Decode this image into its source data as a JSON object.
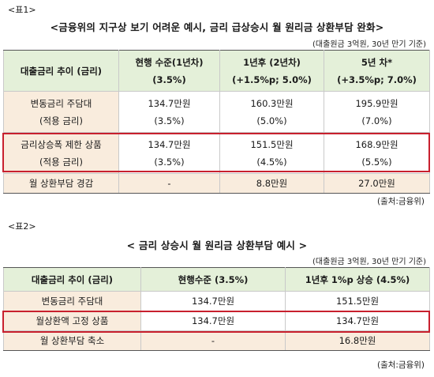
{
  "table1": {
    "caption": "<표1>",
    "title": "<금융위의 지구상 보기 어려운 예시, 금리 급상승시 월 원리금 상환부담 완화>",
    "unit_note": "(대출원금 3억원, 30년 만기 기준)",
    "headers": [
      {
        "line1": "대출금리 추이 (금리)",
        "line2": ""
      },
      {
        "line1": "현행 수준(1년차)",
        "line2": "(3.5%)"
      },
      {
        "line1": "1년후 (2년차)",
        "line2": "(+1.5%p; 5.0%)"
      },
      {
        "line1": "5년 차*",
        "line2": "(+3.5%p; 7.0%)"
      }
    ],
    "rows": [
      {
        "label": "변동금리 주담대",
        "sublabel": "(적용 금리)",
        "cells": [
          {
            "value": "134.7만원",
            "rate": "(3.5%)"
          },
          {
            "value": "160.3만원",
            "rate": "(5.0%)"
          },
          {
            "value": "195.9만원",
            "rate": "(7.0%)"
          }
        ]
      },
      {
        "label": "금리상승폭 제한 상품",
        "sublabel": "(적용 금리)",
        "cells": [
          {
            "value": "134.7만원",
            "rate": "(3.5%)"
          },
          {
            "value": "151.5만원",
            "rate": "(4.5%)"
          },
          {
            "value": "168.9만원",
            "rate": "(5.5%)"
          }
        ]
      }
    ],
    "relief_row": {
      "label": "월 상환부담 경감",
      "cells": [
        "-",
        "8.8만원",
        "27.0만원"
      ]
    },
    "source": "(출처:금융위)"
  },
  "table2": {
    "caption": "<표2>",
    "title": "< 금리 상승시 월 원리금 상환부담 예시 >",
    "unit_note": "(대출원금 3억원, 30년 만기 기준)",
    "headers": [
      "대출금리 추이 (금리)",
      "현행수준 (3.5%)",
      "1년후 1%p 상승 (4.5%)"
    ],
    "rows": [
      {
        "label": "변동금리 주담대",
        "cells": [
          "134.7만원",
          "151.5만원"
        ]
      },
      {
        "label": "월상환액 고정 상품",
        "cells": [
          "134.7만원",
          "134.7만원"
        ]
      },
      {
        "label": "월 상환부담 축소",
        "cells": [
          "-",
          "16.8만원"
        ]
      }
    ],
    "source": "(출처:금융위)"
  },
  "colors": {
    "header_bg": "#e4f0d9",
    "row_bg": "#f9ecdd",
    "highlight_border": "#c8202e"
  }
}
